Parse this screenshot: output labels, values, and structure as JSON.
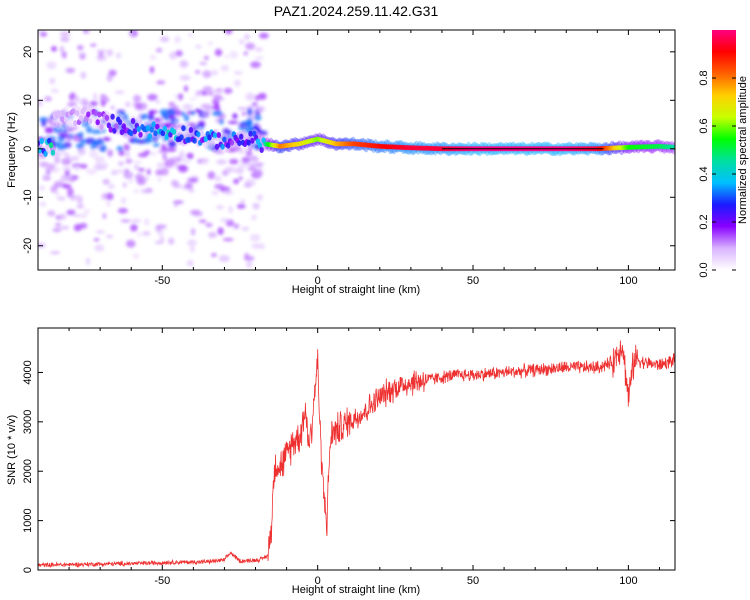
{
  "title": "PAZ1.2024.259.11.42.G31",
  "chart_data": [
    {
      "type": "heatmap",
      "xlabel": "Height of straight line (km)",
      "ylabel": "Frequency (Hz)",
      "xlim": [
        -90,
        115
      ],
      "ylim": [
        -25,
        24.5
      ],
      "x_ticks": [
        -50,
        0,
        50,
        100
      ],
      "y_ticks": [
        -20,
        -10,
        0,
        10,
        20
      ],
      "colorbar": {
        "label": "Normalized spectral amplitude",
        "range": [
          0,
          1
        ],
        "ticks": [
          0.0,
          0.2,
          0.4,
          0.6,
          0.8
        ],
        "colormap": [
          "#ffffff",
          "#d9b3ff",
          "#8800ff",
          "#1a1aff",
          "#00bfff",
          "#00e0a0",
          "#00ff00",
          "#c8ff00",
          "#ffd000",
          "#ff6000",
          "#ff0000",
          "#ff0080"
        ]
      },
      "description_regions": [
        {
          "x_range": [
            -90,
            -17
          ],
          "pattern": "scattered low-amplitude noise across all frequencies, concentrated near 0 to 5 Hz"
        },
        {
          "x_range": [
            -17,
            115
          ],
          "pattern": "narrow high-amplitude line near 0 Hz"
        }
      ],
      "ridge": {
        "x": [
          -85,
          -75,
          -65,
          -55,
          -48,
          -42,
          -35,
          -28,
          -22,
          -17,
          -12,
          -6,
          0,
          6,
          12,
          20,
          30,
          40,
          50,
          60,
          70,
          80,
          90,
          100,
          110,
          115
        ],
        "y": [
          6,
          7,
          5,
          4,
          3.5,
          3,
          2,
          1.5,
          2,
          1,
          0.5,
          1,
          2,
          1,
          1,
          0.5,
          0.2,
          0,
          0,
          0,
          0,
          0,
          0,
          0.3,
          0.5,
          0.3
        ],
        "amplitude": [
          0.1,
          0.15,
          0.25,
          0.35,
          0.4,
          0.3,
          0.35,
          0.3,
          0.35,
          0.45,
          0.8,
          0.7,
          0.6,
          0.75,
          0.85,
          0.9,
          0.95,
          0.95,
          1,
          1,
          1,
          1,
          0.95,
          0.55,
          0.5,
          0.45
        ]
      }
    },
    {
      "type": "line",
      "xlabel": "Height of straight line (km)",
      "ylabel": "SNR (10 * v/v)",
      "xlim": [
        -90,
        115
      ],
      "ylim": [
        0,
        4900
      ],
      "x_ticks": [
        -50,
        0,
        50,
        100
      ],
      "y_ticks": [
        0,
        1000,
        2000,
        3000,
        4000
      ],
      "color": "#ee3030",
      "series": [
        {
          "x": [
            -90,
            -80,
            -70,
            -60,
            -50,
            -40,
            -35,
            -30,
            -28,
            -25,
            -20,
            -18,
            -16,
            -15,
            -14,
            -13,
            -12,
            -10,
            -8,
            -6,
            -5,
            -4,
            -3,
            -2,
            -1,
            0,
            1,
            2,
            3,
            4,
            5,
            8,
            10,
            15,
            20,
            25,
            30,
            35,
            40,
            45,
            50,
            60,
            70,
            80,
            90,
            95,
            98,
            100,
            102,
            105,
            110,
            115
          ],
          "y": [
            100,
            110,
            120,
            130,
            150,
            160,
            170,
            200,
            350,
            180,
            200,
            220,
            300,
            800,
            2000,
            2200,
            2100,
            2300,
            2600,
            2700,
            2900,
            3300,
            2600,
            2800,
            3600,
            4200,
            2500,
            1500,
            1000,
            2600,
            2800,
            2900,
            3000,
            3200,
            3500,
            3700,
            3800,
            3850,
            3900,
            3950,
            3950,
            4000,
            4050,
            4100,
            4100,
            4200,
            4600,
            3500,
            4300,
            4200,
            4150,
            4250
          ]
        }
      ]
    }
  ]
}
